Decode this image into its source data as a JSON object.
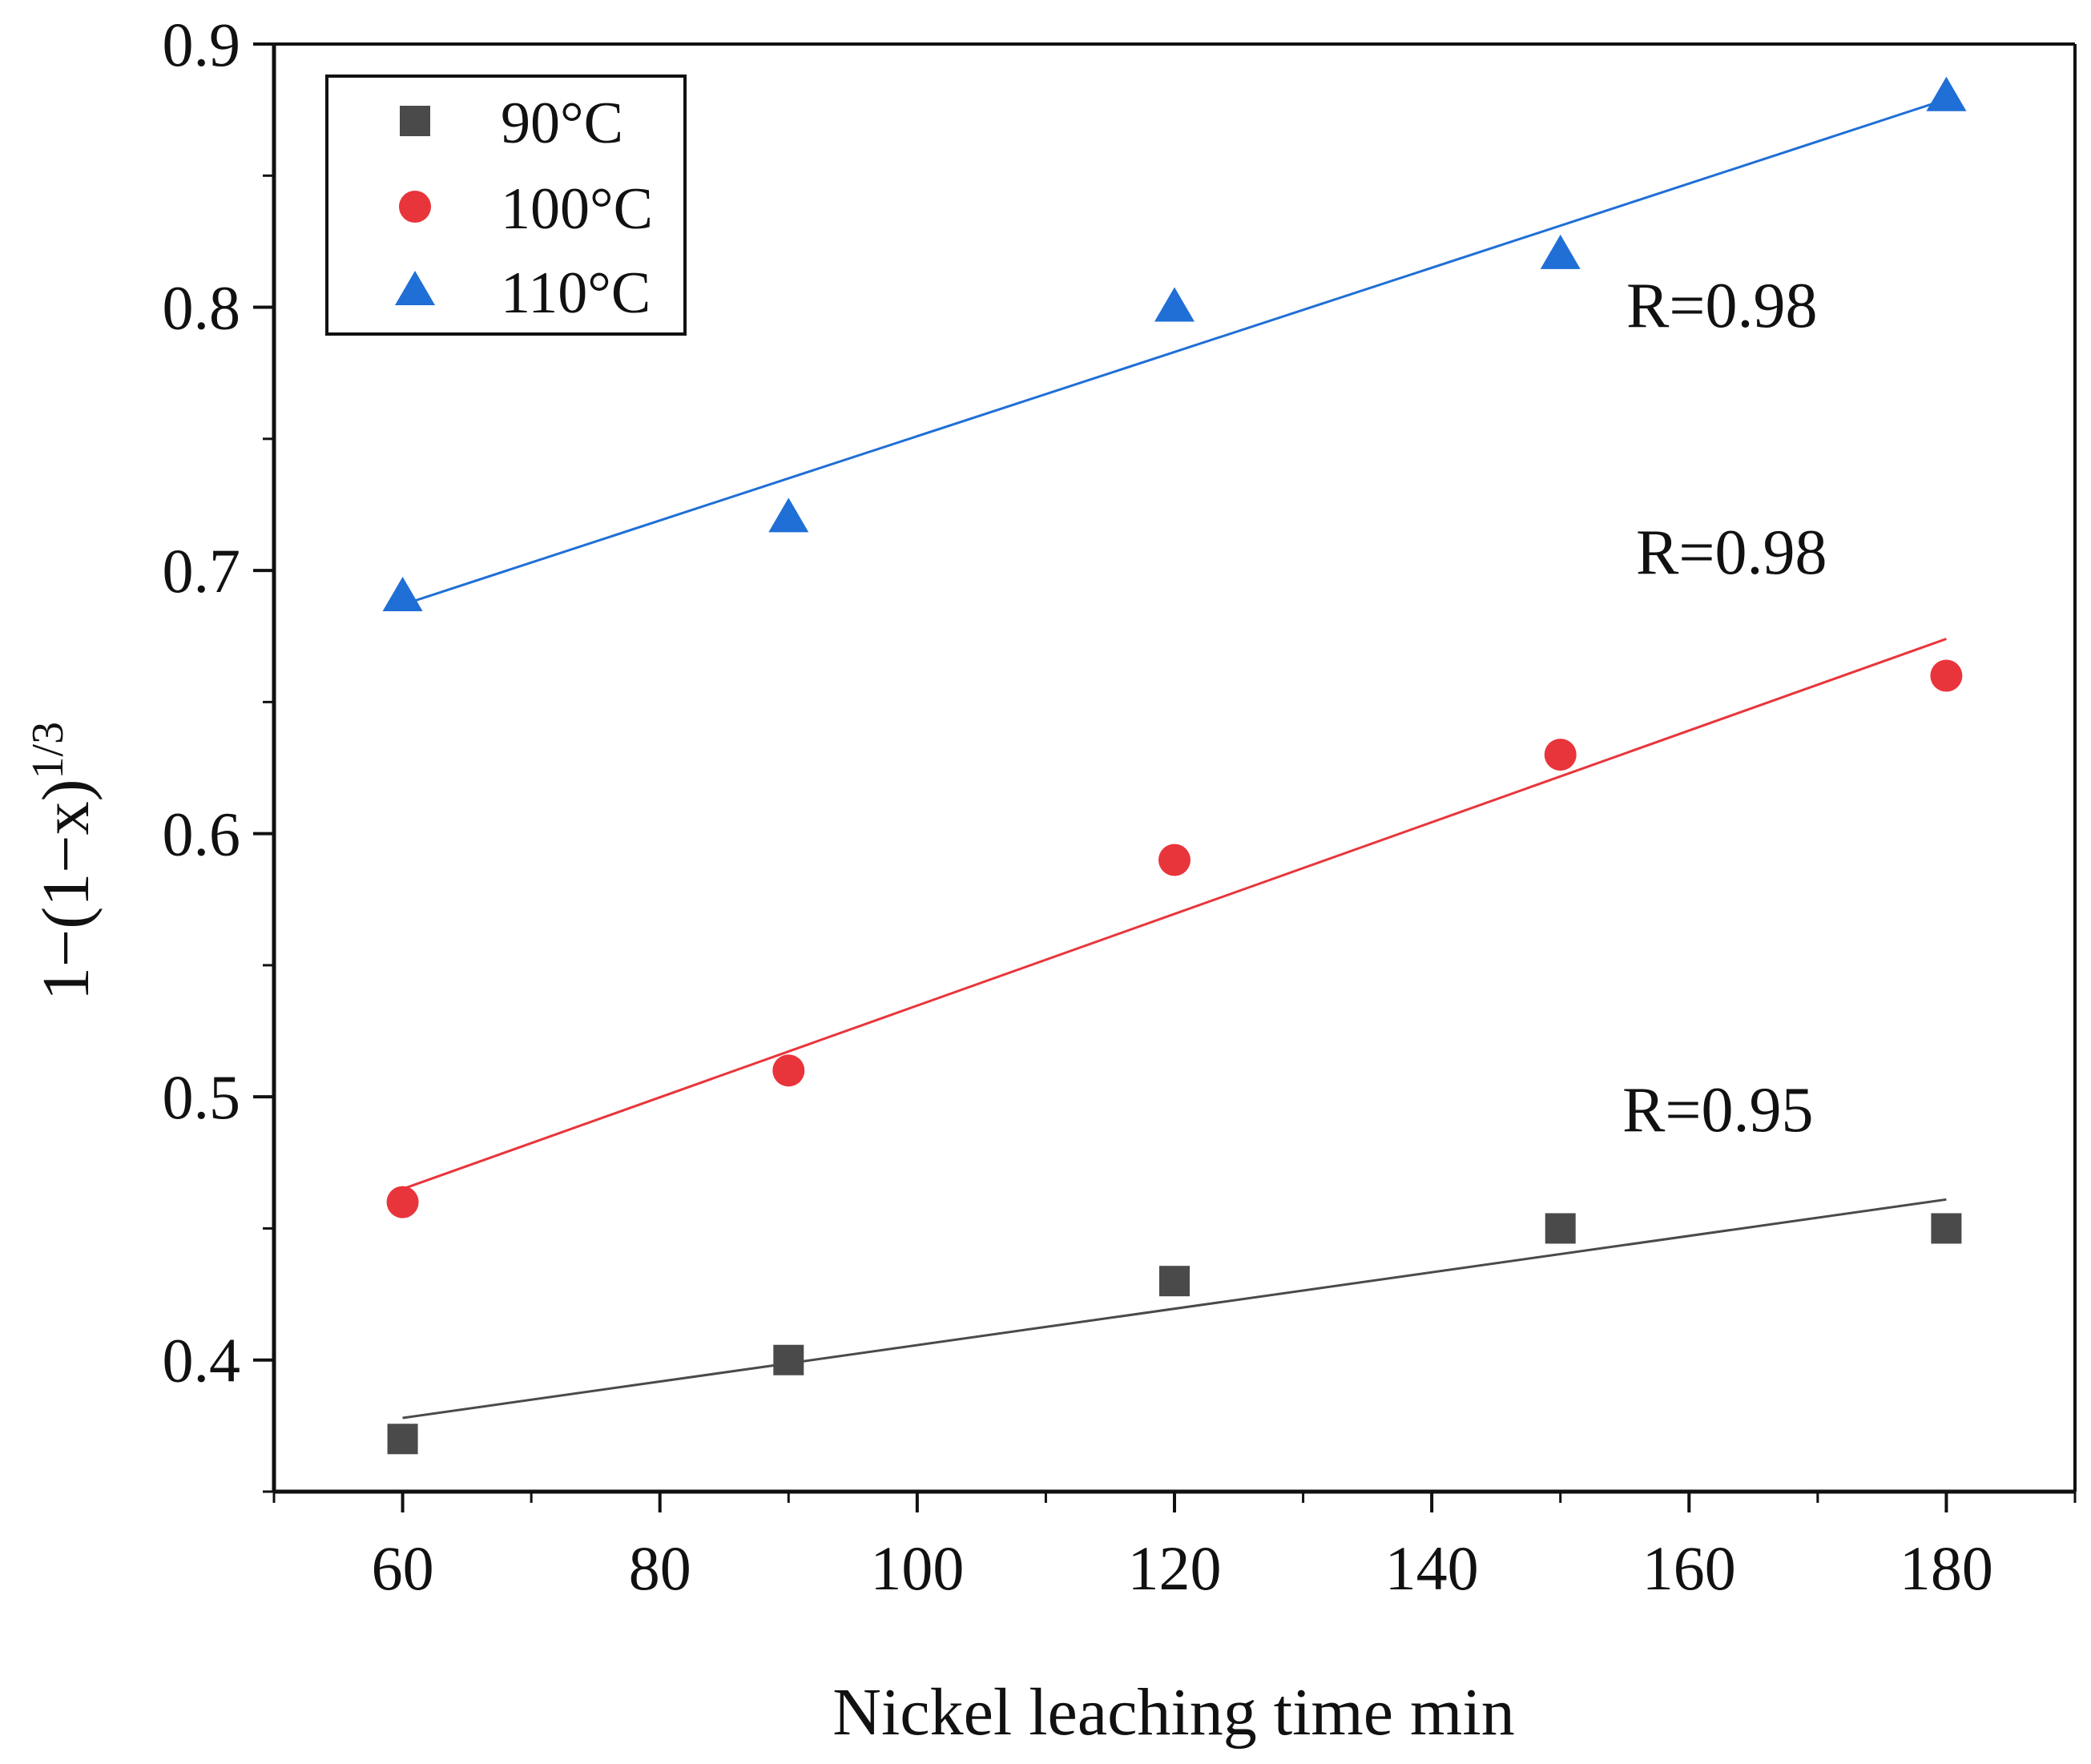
{
  "chart_data": {
    "type": "scatter",
    "title": "",
    "xlabel": "Nickel leaching time min",
    "ylabel": "1−(1−x)",
    "ylabel_superscript": "1/3",
    "xlim": [
      50,
      190
    ],
    "ylim": [
      0.35,
      0.9
    ],
    "x_ticks": [
      60,
      80,
      100,
      120,
      140,
      160,
      180
    ],
    "x_tick_labels": [
      "60",
      "80",
      "100",
      "120",
      "140",
      "160",
      "180"
    ],
    "y_ticks": [
      0.4,
      0.5,
      0.6,
      0.7,
      0.8,
      0.9
    ],
    "y_tick_labels": [
      "0.4",
      "0.5",
      "0.6",
      "0.7",
      "0.8",
      "0.9"
    ],
    "grid": false,
    "legend_position": "top-left",
    "series": [
      {
        "name": "90°C",
        "marker": "square",
        "color": "#4a4a4a",
        "x": [
          60,
          90,
          120,
          150,
          180
        ],
        "values": [
          0.37,
          0.4,
          0.43,
          0.45,
          0.45
        ],
        "fit": {
          "x": [
            60,
            180
          ],
          "y": [
            0.378,
            0.461
          ]
        },
        "r_label": "R=0.95"
      },
      {
        "name": "100°C",
        "marker": "circle",
        "color": "#e8353b",
        "x": [
          60,
          90,
          120,
          150,
          180
        ],
        "values": [
          0.46,
          0.51,
          0.59,
          0.63,
          0.66
        ],
        "fit": {
          "x": [
            60,
            180
          ],
          "y": [
            0.465,
            0.674
          ]
        },
        "r_label": "R=0.98"
      },
      {
        "name": "110°C",
        "marker": "triangle",
        "color": "#1f6fd6",
        "x": [
          60,
          90,
          120,
          150,
          180
        ],
        "values": [
          0.69,
          0.72,
          0.8,
          0.82,
          0.88
        ],
        "fit": {
          "x": [
            60,
            180
          ],
          "y": [
            0.687,
            0.879
          ]
        },
        "r_label": "R=0.98"
      }
    ]
  }
}
